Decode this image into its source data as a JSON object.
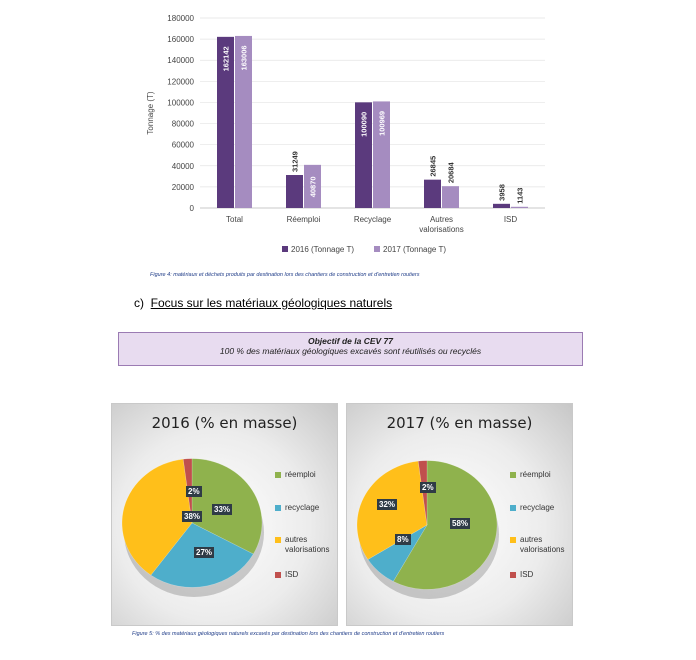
{
  "bar_chart": {
    "yaxis_label": "Tonnage (T)",
    "legend": [
      "2016 (Tonnage T)",
      "2017 (Tonnage T)"
    ],
    "caption": "Figure 4: matériaux et déchets produits par destination lors des chantiers de construction et d'entretien routiers"
  },
  "section_heading": {
    "letter": "c)",
    "text": "Focus sur les matériaux géologiques naturels"
  },
  "objective_box": {
    "title": "Objectif de la CEV 77",
    "text": "100 % des matériaux géologiques excavés sont réutilisés ou recyclés"
  },
  "pie_caption": "Figure 5: % des matériaux géologiques naturels excavés par destination lors des chantiers de construction et d'entretien routiers",
  "legend_labels": [
    "réemploi",
    "recyclage",
    "autres valorisations",
    "ISD"
  ],
  "colors": {
    "c2016": "#5b3a7d",
    "c2017": "#a58cc0",
    "reemploi": "#8fb24d",
    "recyclage": "#4eaecb",
    "autres": "#ffbf1a",
    "isd": "#c0504d"
  },
  "chart_data": [
    {
      "type": "bar",
      "categories": [
        "Total",
        "Réemploi",
        "Recyclage",
        "Autres valorisations",
        "ISD"
      ],
      "series": [
        {
          "name": "2016 (Tonnage T)",
          "values": [
            162142,
            31249,
            100090,
            26845,
            3958
          ]
        },
        {
          "name": "2017 (Tonnage T)",
          "values": [
            163006,
            40870,
            100969,
            20684,
            1143
          ]
        }
      ],
      "ylabel": "Tonnage (T)",
      "ylim": [
        0,
        180000
      ],
      "yticks": [
        "0",
        "20000",
        "40000",
        "60000",
        "80000",
        "100000",
        "120000",
        "140000",
        "160000",
        "180000"
      ],
      "grid": true,
      "legend_position": "bottom"
    },
    {
      "type": "pie",
      "title": "2016 (% en masse)",
      "labels": [
        "réemploi",
        "recyclage",
        "autres valorisations",
        "ISD"
      ],
      "values": [
        33,
        27,
        38,
        2
      ],
      "data_labels": [
        "33%",
        "27%",
        "38%",
        "2%"
      ],
      "legend_position": "right"
    },
    {
      "type": "pie",
      "title": "2017 (% en masse)",
      "labels": [
        "réemploi",
        "recyclage",
        "autres valorisations",
        "ISD"
      ],
      "values": [
        58,
        8,
        32,
        2
      ],
      "data_labels": [
        "58%",
        "8%",
        "32%",
        "2%"
      ],
      "legend_position": "right"
    }
  ]
}
